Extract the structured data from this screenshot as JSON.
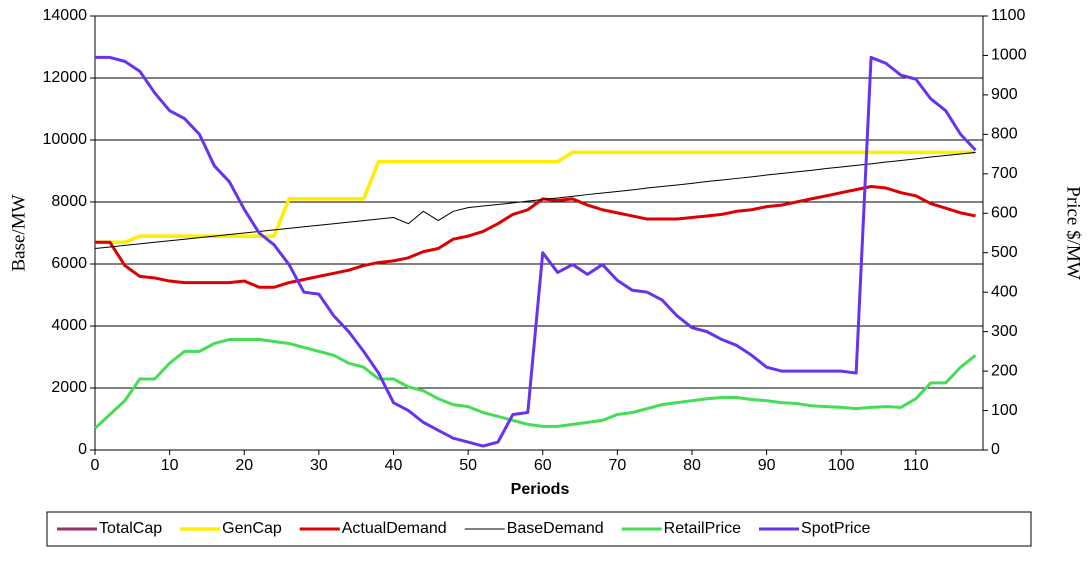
{
  "chart_data": {
    "type": "line",
    "x_label": "Periods",
    "y_label": "Base/MW",
    "y2_label": "Price $/MW",
    "x": [
      0,
      2,
      4,
      6,
      8,
      10,
      12,
      14,
      16,
      18,
      20,
      22,
      24,
      26,
      28,
      30,
      32,
      34,
      36,
      38,
      40,
      42,
      44,
      46,
      48,
      50,
      52,
      54,
      56,
      58,
      60,
      62,
      64,
      66,
      68,
      70,
      72,
      74,
      76,
      78,
      80,
      82,
      84,
      86,
      88,
      90,
      92,
      94,
      96,
      98,
      100,
      102,
      104,
      106,
      108,
      110,
      112,
      114,
      116,
      118
    ],
    "xlim": [
      0,
      119
    ],
    "xticks": [
      0,
      10,
      20,
      30,
      40,
      50,
      60,
      70,
      80,
      90,
      100,
      110
    ],
    "ylim": [
      0,
      14000
    ],
    "yticks": [
      0,
      2000,
      4000,
      6000,
      8000,
      10000,
      12000,
      14000
    ],
    "y2lim": [
      0,
      1100
    ],
    "y2ticks": [
      0,
      100,
      200,
      300,
      400,
      500,
      600,
      700,
      800,
      900,
      1000,
      1100
    ],
    "grid": true,
    "legend": "bottom",
    "series": [
      {
        "name": "TotalCap",
        "color": "#993366",
        "width": 3,
        "values": [
          6700,
          6700,
          6700,
          6900,
          6900,
          6900,
          6900,
          6900,
          6900,
          6900,
          6900,
          6900,
          6900,
          8100,
          8100,
          8100,
          8100,
          8100,
          8100,
          9300,
          9300,
          9300,
          9300,
          9300,
          9300,
          9300,
          9300,
          9300,
          9300,
          9300,
          9300,
          9300,
          9600,
          9600,
          9600,
          9600,
          9600,
          9600,
          9600,
          9600,
          9600,
          9600,
          9600,
          9600,
          9600,
          9600,
          9600,
          9600,
          9600,
          9600,
          9600,
          9600,
          9600,
          9600,
          9600,
          9600,
          9600,
          9600,
          9600,
          9600
        ]
      },
      {
        "name": "GenCap",
        "color": "#ffee00",
        "width": 3.5,
        "values": [
          6700,
          6700,
          6700,
          6900,
          6900,
          6900,
          6900,
          6900,
          6900,
          6900,
          6900,
          6900,
          6900,
          8100,
          8100,
          8100,
          8100,
          8100,
          8100,
          9300,
          9300,
          9300,
          9300,
          9300,
          9300,
          9300,
          9300,
          9300,
          9300,
          9300,
          9300,
          9300,
          9600,
          9600,
          9600,
          9600,
          9600,
          9600,
          9600,
          9600,
          9600,
          9600,
          9600,
          9600,
          9600,
          9600,
          9600,
          9600,
          9600,
          9600,
          9600,
          9600,
          9600,
          9600,
          9600,
          9600,
          9600,
          9600,
          9600,
          9600
        ]
      },
      {
        "name": "ActualDemand",
        "color": "#dd0000",
        "width": 3,
        "values": [
          6700,
          6700,
          5950,
          5600,
          5550,
          5450,
          5400,
          5400,
          5400,
          5400,
          5450,
          5250,
          5250,
          5400,
          5500,
          5600,
          5700,
          5800,
          5950,
          6050,
          6100,
          6200,
          6400,
          6500,
          6800,
          6900,
          7050,
          7300,
          7600,
          7750,
          8100,
          8050,
          8100,
          7900,
          7750,
          7650,
          7550,
          7450,
          7450,
          7450,
          7500,
          7550,
          7600,
          7700,
          7750,
          7850,
          7900,
          8000,
          8100,
          8200,
          8300,
          8400,
          8500,
          8450,
          8300,
          8200,
          7950,
          7800,
          7650,
          7550
        ]
      },
      {
        "name": "BaseDemand",
        "color": "#000000",
        "width": 1,
        "values": [
          6500,
          6550,
          6600,
          6650,
          6700,
          6750,
          6800,
          6850,
          6900,
          6950,
          7000,
          7050,
          7100,
          7150,
          7200,
          7250,
          7300,
          7350,
          7400,
          7450,
          7500,
          7300,
          7700,
          7400,
          7700,
          7820,
          7870,
          7920,
          7970,
          8030,
          8080,
          8130,
          8180,
          8240,
          8290,
          8340,
          8390,
          8450,
          8500,
          8550,
          8600,
          8660,
          8710,
          8760,
          8810,
          8870,
          8920,
          8970,
          9020,
          9080,
          9130,
          9180,
          9230,
          9290,
          9340,
          9390,
          9450,
          9500,
          9550,
          9600
        ]
      },
      {
        "name": "RetailPrice",
        "color": "#44dd55",
        "width": 3,
        "axis": "y2",
        "values": [
          55,
          90,
          125,
          180,
          180,
          220,
          250,
          250,
          270,
          280,
          280,
          280,
          275,
          270,
          260,
          250,
          240,
          220,
          210,
          180,
          180,
          160,
          150,
          130,
          115,
          110,
          95,
          85,
          75,
          65,
          60,
          60,
          65,
          70,
          75,
          90,
          95,
          105,
          115,
          120,
          125,
          130,
          133,
          133,
          128,
          125,
          120,
          118,
          112,
          110,
          108,
          105,
          108,
          110,
          108,
          130,
          170,
          170,
          210,
          240
        ]
      },
      {
        "name": "SpotPrice",
        "color": "#6633ee",
        "width": 3,
        "axis": "y2",
        "values": [
          995,
          995,
          985,
          960,
          905,
          860,
          840,
          800,
          720,
          680,
          610,
          550,
          520,
          470,
          400,
          395,
          340,
          300,
          250,
          195,
          120,
          100,
          70,
          50,
          30,
          20,
          10,
          20,
          90,
          95,
          500,
          450,
          470,
          445,
          470,
          430,
          405,
          400,
          380,
          340,
          310,
          300,
          280,
          265,
          240,
          210,
          200,
          200,
          200,
          200,
          200,
          195,
          995,
          980,
          950,
          940,
          890,
          860,
          800,
          760
        ]
      }
    ]
  }
}
